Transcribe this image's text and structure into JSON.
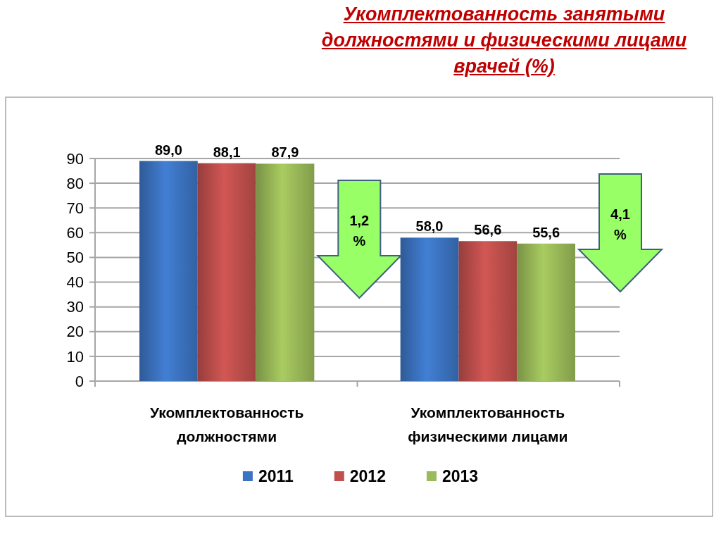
{
  "chart_data": {
    "type": "bar",
    "title": "Укомплектованность занятыми должностями и физическими лицами врачей (%)",
    "categories": [
      "Укомплектованность должностями",
      "Укомплектованность физическими лицами"
    ],
    "series": [
      {
        "name": "2011",
        "color": "#3c74c2",
        "values": [
          89.0,
          58.0
        ],
        "value_labels": [
          "89,0",
          "58,0"
        ]
      },
      {
        "name": "2012",
        "color": "#c0504d",
        "values": [
          88.1,
          56.6
        ],
        "value_labels": [
          "88,1",
          "56,6"
        ]
      },
      {
        "name": "2013",
        "color": "#9bbb59",
        "values": [
          87.9,
          55.6
        ],
        "value_labels": [
          "87,9",
          "55,6"
        ]
      }
    ],
    "ylim": [
      0,
      90
    ],
    "yticks": [
      0,
      10,
      20,
      30,
      40,
      50,
      60,
      70,
      80,
      90
    ],
    "grid": "y",
    "legend": "bottom",
    "annotations": [
      "1,2 %",
      "4,1 %"
    ]
  }
}
